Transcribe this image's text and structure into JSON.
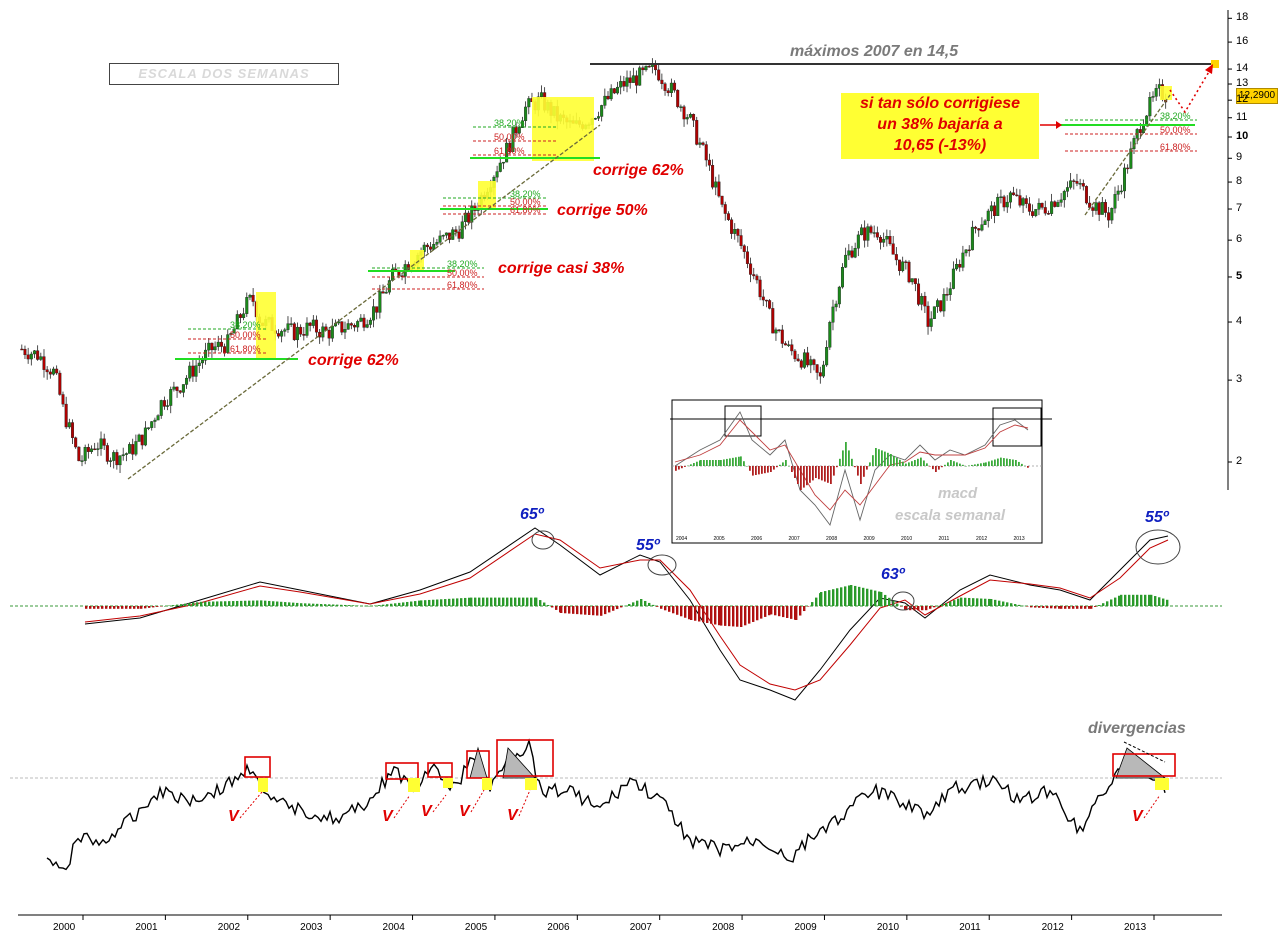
{
  "chart_data": [
    {
      "type": "line",
      "title": "",
      "scale": "log",
      "ylim": [
        1.7,
        19
      ],
      "ytick_labels": [
        "18",
        "16",
        "14",
        "13",
        "12",
        "11",
        "10",
        "9",
        "8",
        "7",
        "6",
        "5",
        "4",
        "3",
        "2"
      ],
      "ytick_values": [
        18,
        16,
        14,
        13,
        12,
        11,
        10,
        9,
        8,
        7,
        6,
        5,
        4,
        3,
        2
      ],
      "x_categories": [
        "2000",
        "2001",
        "2002",
        "2003",
        "2004",
        "2005",
        "2006",
        "2007",
        "2008",
        "2009",
        "2010",
        "2011",
        "2012",
        "2013"
      ],
      "series": [
        {
          "x": [
            1999.5,
            1999.7,
            1999.9,
            2000.0,
            2000.2,
            2000.4,
            2000.6,
            2000.8,
            2001.0,
            2001.2,
            2001.4,
            2001.6,
            2001.8,
            2002.0,
            2002.2,
            2002.3,
            2002.4,
            2002.6,
            2002.8,
            2003.0,
            2003.2,
            2003.4,
            2003.6,
            2003.8,
            2004.0,
            2004.2,
            2004.4,
            2004.6,
            2004.8,
            2005.0,
            2005.2,
            2005.4,
            2005.6,
            2005.8,
            2006.0,
            2006.2,
            2006.4,
            2006.6,
            2006.8,
            2007.0,
            2007.2,
            2007.4,
            2007.6,
            2007.8,
            2008.0,
            2008.2,
            2008.4,
            2008.6,
            2008.8,
            2009.0,
            2009.2,
            2009.3,
            2009.5,
            2009.7,
            2009.9,
            2010.1,
            2010.3,
            2010.5,
            2010.7,
            2010.9,
            2011.1,
            2011.3,
            2011.5,
            2011.7,
            2011.9,
            2012.1,
            2012.3,
            2012.5,
            2012.7,
            2012.9,
            2013.1,
            2013.3,
            2013.4
          ],
          "values": [
            3.5,
            3.4,
            3.1,
            2.6,
            2.0,
            2.2,
            2.05,
            2.1,
            2.3,
            2.7,
            2.9,
            3.2,
            3.5,
            3.6,
            4.3,
            4.5,
            4.0,
            3.9,
            3.8,
            3.9,
            3.8,
            3.9,
            4.0,
            4.3,
            5.0,
            5.4,
            5.8,
            6.0,
            6.3,
            7.0,
            8.2,
            9.5,
            11.5,
            12.0,
            11.0,
            10.5,
            11.0,
            12.0,
            13.0,
            13.5,
            14.0,
            12.5,
            11.0,
            9.0,
            7.0,
            6.0,
            5.0,
            4.0,
            3.5,
            3.3,
            3.0,
            4.0,
            5.5,
            6.2,
            6.3,
            5.5,
            5.0,
            4.0,
            4.5,
            5.5,
            6.5,
            7.0,
            7.5,
            7.0,
            7.0,
            7.5,
            8.0,
            7.2,
            6.8,
            8.5,
            11.0,
            12.5,
            12.29
          ]
        }
      ],
      "price_label": "12,2900",
      "annotations": {
        "scale_box": "ESCALA DOS SEMANAS",
        "max_line": "máximos 2007 en 14,5",
        "note_lines": [
          "si tan sólo corrigiese",
          "un 38% bajaría a",
          "10,65 (-13%)"
        ],
        "corrections": [
          "corrige 62%",
          "corrige 50%",
          "corrige casi 38%",
          "corrige 62%"
        ],
        "fib_levels": [
          "38,20%",
          "50,00%",
          "61,80%"
        ]
      }
    },
    {
      "type": "line",
      "title": "",
      "angles": [
        "65º",
        "55º",
        "63º",
        "55º"
      ],
      "inset_labels": [
        "macd",
        "escala semanal"
      ],
      "inset_x_labels": [
        "2004",
        "2005",
        "2006",
        "2007",
        "2008",
        "2009",
        "2010",
        "2011",
        "2012",
        "2013"
      ]
    },
    {
      "type": "line",
      "title": "",
      "annotations": {
        "divergencias": "divergencias",
        "v_marks": [
          "V",
          "V",
          "V",
          "V",
          "V",
          "V"
        ]
      }
    }
  ],
  "colors": {
    "up": "#1a8a1a",
    "down": "#b00000",
    "fib_green": "#22aa22",
    "fib_red": "#cc2222",
    "highlight": "#ffff33",
    "accent_red": "#e00000",
    "accent_blue": "#1020c0",
    "gray_text": "#7a7a7a"
  }
}
